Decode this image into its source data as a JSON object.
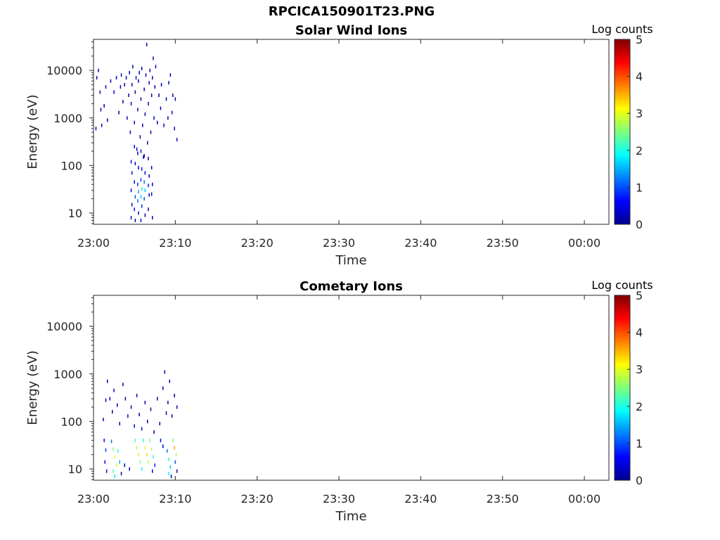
{
  "figure": {
    "title": "RPCICA150901T23.PNG"
  },
  "colorbar": {
    "label": "Log counts",
    "ticks": [
      "0",
      "1",
      "2",
      "3",
      "4",
      "5"
    ],
    "range": [
      0,
      5
    ],
    "colormap": "jet"
  },
  "chart_data": [
    {
      "type": "heatmap",
      "title": "Solar Wind Ions",
      "xlabel": "Time",
      "ylabel": "Energy (eV)",
      "x_ticks": [
        "23:00",
        "23:10",
        "23:20",
        "23:30",
        "23:40",
        "23:50",
        "00:00"
      ],
      "x_tick_minutes": [
        0,
        10,
        20,
        30,
        40,
        50,
        60
      ],
      "xlim_minutes": [
        0,
        63
      ],
      "y_scale": "log",
      "y_ticks": [
        "10",
        "100",
        "1000",
        "10000"
      ],
      "ylim": [
        5.8,
        45000
      ],
      "zlim": [
        0,
        5
      ],
      "cells": [
        [
          0.3,
          600,
          0.3
        ],
        [
          0.4,
          7000,
          0.2
        ],
        [
          0.6,
          10000,
          0.3
        ],
        [
          0.8,
          3500,
          0.3
        ],
        [
          0.9,
          1500,
          0.2
        ],
        [
          1.0,
          700,
          0.3
        ],
        [
          1.3,
          1800,
          0.2
        ],
        [
          1.5,
          4500,
          0.3
        ],
        [
          1.7,
          900,
          0.2
        ],
        [
          2.1,
          6000,
          0.2
        ],
        [
          2.5,
          3500,
          0.3
        ],
        [
          2.8,
          7000,
          0.3
        ],
        [
          3.1,
          1300,
          0.2
        ],
        [
          3.3,
          4500,
          0.3
        ],
        [
          3.4,
          8000,
          0.3
        ],
        [
          3.6,
          2200,
          0.2
        ],
        [
          3.8,
          5000,
          0.3
        ],
        [
          4.0,
          7000,
          0.2
        ],
        [
          4.1,
          1000,
          0.3
        ],
        [
          4.3,
          3000,
          0.3
        ],
        [
          4.4,
          9000,
          0.2
        ],
        [
          4.5,
          500,
          0.3
        ],
        [
          4.6,
          2000,
          0.2
        ],
        [
          4.7,
          5000,
          0.3
        ],
        [
          4.8,
          12000,
          0.2
        ],
        [
          5.0,
          800,
          0.3
        ],
        [
          5.1,
          3500,
          0.2
        ],
        [
          5.2,
          7000,
          0.3
        ],
        [
          5.3,
          220,
          0.3
        ],
        [
          5.4,
          1500,
          0.3
        ],
        [
          5.5,
          6000,
          0.2
        ],
        [
          5.6,
          9000,
          0.3
        ],
        [
          5.7,
          400,
          0.2
        ],
        [
          5.8,
          2500,
          0.3
        ],
        [
          5.9,
          11000,
          0.3
        ],
        [
          6.0,
          700,
          0.3
        ],
        [
          6.1,
          150,
          0.3
        ],
        [
          6.2,
          4000,
          0.2
        ],
        [
          6.3,
          1200,
          0.3
        ],
        [
          6.4,
          8000,
          0.3
        ],
        [
          6.5,
          35000,
          0.2
        ],
        [
          6.6,
          300,
          0.3
        ],
        [
          6.7,
          2000,
          0.2
        ],
        [
          6.8,
          5500,
          0.3
        ],
        [
          6.9,
          10000,
          0.3
        ],
        [
          7.0,
          500,
          0.3
        ],
        [
          7.1,
          3000,
          0.3
        ],
        [
          7.2,
          7000,
          0.2
        ],
        [
          7.3,
          18000,
          0.3
        ],
        [
          7.4,
          1000,
          0.3
        ],
        [
          7.5,
          4500,
          0.2
        ],
        [
          7.6,
          12000,
          0.3
        ],
        [
          7.8,
          800,
          0.3
        ],
        [
          8.0,
          3000,
          0.2
        ],
        [
          8.2,
          1600,
          0.3
        ],
        [
          8.3,
          5000,
          0.3
        ],
        [
          8.6,
          700,
          0.3
        ],
        [
          8.9,
          2500,
          0.2
        ],
        [
          9.1,
          1000,
          0.3
        ],
        [
          9.2,
          5500,
          0.3
        ],
        [
          9.4,
          8000,
          0.2
        ],
        [
          9.6,
          1300,
          0.3
        ],
        [
          9.7,
          3000,
          0.3
        ],
        [
          9.9,
          600,
          0.2
        ],
        [
          10.0,
          2500,
          0.3
        ],
        [
          10.2,
          350,
          0.3
        ],
        [
          4.6,
          120,
          0.4
        ],
        [
          4.7,
          70,
          0.5
        ],
        [
          4.6,
          30,
          0.5
        ],
        [
          4.7,
          15,
          0.4
        ],
        [
          4.6,
          8,
          0.3
        ],
        [
          5.0,
          250,
          0.4
        ],
        [
          5.1,
          110,
          0.5
        ],
        [
          5.0,
          45,
          0.6
        ],
        [
          5.1,
          22,
          1.0
        ],
        [
          5.0,
          12,
          0.6
        ],
        [
          5.1,
          7,
          0.3
        ],
        [
          5.4,
          180,
          0.3
        ],
        [
          5.5,
          90,
          0.4
        ],
        [
          5.4,
          40,
          0.8
        ],
        [
          5.5,
          28,
          1.4
        ],
        [
          5.4,
          18,
          1.2
        ],
        [
          5.5,
          10,
          0.6
        ],
        [
          5.8,
          200,
          0.4
        ],
        [
          5.9,
          85,
          0.5
        ],
        [
          5.8,
          50,
          0.9
        ],
        [
          5.9,
          32,
          1.8
        ],
        [
          5.8,
          22,
          1.6
        ],
        [
          5.9,
          14,
          0.8
        ],
        [
          5.8,
          7,
          0.3
        ],
        [
          6.2,
          160,
          0.3
        ],
        [
          6.3,
          70,
          0.4
        ],
        [
          6.2,
          45,
          1.2
        ],
        [
          6.3,
          30,
          1.6
        ],
        [
          6.2,
          20,
          1.0
        ],
        [
          6.3,
          9,
          0.3
        ],
        [
          6.7,
          140,
          0.3
        ],
        [
          6.8,
          60,
          0.5
        ],
        [
          6.7,
          38,
          0.7
        ],
        [
          6.8,
          24,
          0.5
        ],
        [
          6.7,
          12,
          0.3
        ],
        [
          7.1,
          90,
          0.3
        ],
        [
          7.2,
          40,
          0.4
        ],
        [
          7.1,
          25,
          0.3
        ],
        [
          7.2,
          8,
          0.3
        ]
      ]
    },
    {
      "type": "heatmap",
      "title": "Cometary Ions",
      "xlabel": "Time",
      "ylabel": "Energy (eV)",
      "x_ticks": [
        "23:00",
        "23:10",
        "23:20",
        "23:30",
        "23:40",
        "23:50",
        "00:00"
      ],
      "x_tick_minutes": [
        0,
        10,
        20,
        30,
        40,
        50,
        60
      ],
      "xlim_minutes": [
        0,
        63
      ],
      "y_scale": "log",
      "y_ticks": [
        "10",
        "100",
        "1000",
        "10000"
      ],
      "ylim": [
        5.8,
        45000
      ],
      "zlim": [
        0,
        5
      ],
      "cells": [
        [
          1.2,
          110,
          0.3
        ],
        [
          1.5,
          280,
          0.2
        ],
        [
          1.7,
          700,
          0.3
        ],
        [
          2.0,
          300,
          0.3
        ],
        [
          2.3,
          160,
          0.2
        ],
        [
          2.5,
          450,
          0.3
        ],
        [
          2.9,
          220,
          0.3
        ],
        [
          3.2,
          90,
          0.2
        ],
        [
          3.6,
          600,
          0.3
        ],
        [
          3.9,
          300,
          0.2
        ],
        [
          4.2,
          130,
          0.3
        ],
        [
          4.6,
          200,
          0.2
        ],
        [
          5.0,
          80,
          0.3
        ],
        [
          5.3,
          350,
          0.3
        ],
        [
          5.6,
          140,
          0.2
        ],
        [
          5.9,
          70,
          0.3
        ],
        [
          6.3,
          250,
          0.3
        ],
        [
          6.6,
          100,
          0.2
        ],
        [
          7.0,
          180,
          0.3
        ],
        [
          7.4,
          60,
          0.3
        ],
        [
          7.8,
          300,
          0.2
        ],
        [
          8.1,
          90,
          0.3
        ],
        [
          8.5,
          500,
          0.3
        ],
        [
          8.7,
          1100,
          0.2
        ],
        [
          8.9,
          150,
          0.3
        ],
        [
          9.1,
          250,
          0.2
        ],
        [
          9.3,
          700,
          0.3
        ],
        [
          9.6,
          130,
          0.3
        ],
        [
          9.9,
          350,
          0.2
        ],
        [
          10.2,
          200,
          0.3
        ],
        [
          1.3,
          40,
          0.5
        ],
        [
          1.5,
          25,
          0.9
        ],
        [
          1.4,
          14,
          0.6
        ],
        [
          1.6,
          9,
          0.3
        ],
        [
          2.2,
          38,
          1.2
        ],
        [
          2.4,
          26,
          2.6
        ],
        [
          2.6,
          18,
          3.0
        ],
        [
          2.8,
          12,
          2.8
        ],
        [
          2.4,
          9,
          2.2
        ],
        [
          2.6,
          7,
          1.8
        ],
        [
          3.0,
          24,
          2.0
        ],
        [
          3.2,
          14,
          1.5
        ],
        [
          3.4,
          8,
          0.4
        ],
        [
          3.8,
          12,
          0.3
        ],
        [
          4.4,
          10,
          0.3
        ],
        [
          5.1,
          40,
          2.2
        ],
        [
          5.3,
          28,
          2.8
        ],
        [
          5.5,
          20,
          3.2
        ],
        [
          5.7,
          14,
          2.6
        ],
        [
          5.9,
          10,
          1.8
        ],
        [
          6.1,
          40,
          2.0
        ],
        [
          6.3,
          28,
          3.0
        ],
        [
          6.5,
          20,
          3.3
        ],
        [
          6.7,
          14,
          2.8
        ],
        [
          6.9,
          40,
          2.4
        ],
        [
          7.1,
          26,
          2.7
        ],
        [
          7.3,
          18,
          2.0
        ],
        [
          7.5,
          12,
          0.8
        ],
        [
          7.2,
          9,
          0.3
        ],
        [
          8.2,
          40,
          0.4
        ],
        [
          8.5,
          30,
          0.5
        ],
        [
          9.0,
          24,
          1.2
        ],
        [
          9.2,
          16,
          2.0
        ],
        [
          9.4,
          11,
          1.6
        ],
        [
          9.2,
          8,
          1.8
        ],
        [
          9.5,
          7,
          0.3
        ],
        [
          9.7,
          40,
          2.4
        ],
        [
          9.9,
          28,
          3.6
        ],
        [
          10.1,
          20,
          2.6
        ],
        [
          10.0,
          14,
          1.0
        ],
        [
          10.2,
          9,
          0.2
        ]
      ]
    }
  ]
}
